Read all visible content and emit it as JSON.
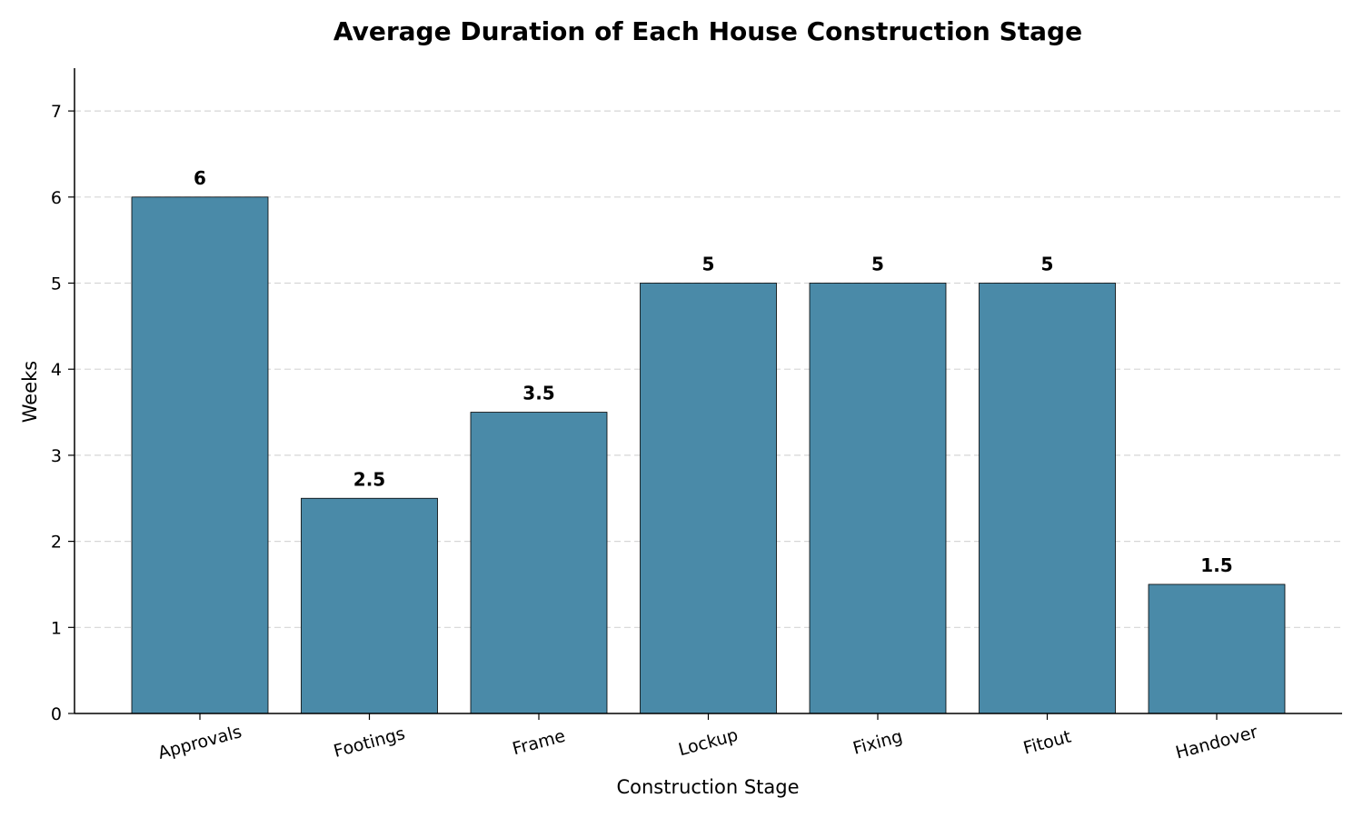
{
  "chart_data": {
    "type": "bar",
    "title": "Average Duration of Each House Construction Stage",
    "xlabel": "Construction Stage",
    "ylabel": "Weeks",
    "categories": [
      "Approvals",
      "Footings",
      "Frame",
      "Lockup",
      "Fixing",
      "Fitout",
      "Handover"
    ],
    "values": [
      6,
      2.5,
      3.5,
      5,
      5,
      5,
      1.5
    ],
    "data_labels": [
      "6",
      "2.5",
      "3.5",
      "5",
      "5",
      "5",
      "1.5"
    ],
    "y_ticks": [
      0,
      1,
      2,
      3,
      4,
      5,
      6,
      7
    ],
    "ylim": [
      0,
      7.5
    ],
    "grid": "horizontal dashed",
    "bar_color": "#4a8aa8",
    "x_tick_rotation_deg": -15
  }
}
